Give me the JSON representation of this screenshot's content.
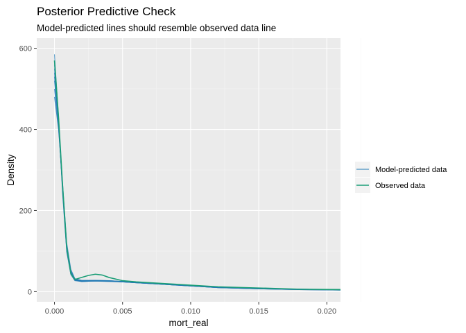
{
  "chart_data": {
    "type": "line",
    "title": "Posterior Predictive Check",
    "subtitle": "Model-predicted lines should resemble observed data line",
    "xlabel": "mort_real",
    "ylabel": "Density",
    "xlim": [
      -0.0013,
      0.021
    ],
    "ylim": [
      -25,
      625
    ],
    "x_ticks": [
      0.0,
      0.005,
      0.01,
      0.015,
      0.02
    ],
    "x_tick_labels": [
      "0.000",
      "0.005",
      "0.010",
      "0.015",
      "0.020"
    ],
    "y_ticks": [
      0,
      200,
      400,
      600
    ],
    "y_tick_labels": [
      "0",
      "200",
      "400",
      "600"
    ],
    "grid": true,
    "legend_position": "right",
    "legend": [
      {
        "label": "Model-predicted data",
        "color": "#1f78b4"
      },
      {
        "label": "Observed data",
        "color": "#1b9e77"
      }
    ],
    "series": [
      {
        "name": "Observed data",
        "color": "#1b9e77",
        "x": [
          0.0,
          0.0003,
          0.0006,
          0.0009,
          0.0012,
          0.0015,
          0.002,
          0.0025,
          0.003,
          0.0035,
          0.004,
          0.005,
          0.006,
          0.008,
          0.01,
          0.012,
          0.015,
          0.018,
          0.021
        ],
        "y": [
          570,
          430,
          260,
          110,
          45,
          30,
          35,
          40,
          43,
          41,
          35,
          27,
          24,
          20,
          16,
          12,
          9,
          6,
          5
        ]
      },
      {
        "name": "Model-predicted data",
        "color": "#1f78b4",
        "replicates": [
          {
            "x": [
              0.0,
              0.0003,
              0.0006,
              0.0009,
              0.0012,
              0.0015,
              0.002,
              0.003,
              0.004,
              0.005,
              0.006,
              0.008,
              0.01,
              0.012,
              0.015,
              0.018,
              0.021
            ],
            "y": [
              585,
              430,
              245,
              100,
              45,
              28,
              26,
              27,
              27,
              25,
              23,
              19,
              15,
              11,
              8,
              6,
              5
            ]
          },
          {
            "x": [
              0.0,
              0.0003,
              0.0006,
              0.0009,
              0.0012,
              0.0015,
              0.002,
              0.003,
              0.004,
              0.005,
              0.006,
              0.008,
              0.01,
              0.012,
              0.015,
              0.018,
              0.021
            ],
            "y": [
              560,
              420,
              240,
              98,
              42,
              27,
              25,
              26,
              26,
              24,
              22,
              18,
              14,
              10,
              7,
              5,
              4
            ]
          },
          {
            "x": [
              0.0,
              0.0003,
              0.0006,
              0.0009,
              0.0012,
              0.0015,
              0.002,
              0.003,
              0.004,
              0.005,
              0.006,
              0.008,
              0.01,
              0.012,
              0.015,
              0.018,
              0.021
            ],
            "y": [
              540,
              415,
              250,
              105,
              47,
              29,
              27,
              28,
              27,
              25,
              23,
              19,
              15,
              11,
              8,
              6,
              5
            ]
          },
          {
            "x": [
              0.0,
              0.0003,
              0.0006,
              0.0009,
              0.0012,
              0.0015,
              0.002,
              0.003,
              0.004,
              0.005,
              0.006,
              0.008,
              0.01,
              0.012,
              0.015,
              0.018,
              0.021
            ],
            "y": [
              520,
              410,
              255,
              110,
              50,
              30,
              26,
              27,
              26,
              24,
              22,
              18,
              14,
              10,
              7,
              5,
              4
            ]
          },
          {
            "x": [
              0.0,
              0.0003,
              0.0006,
              0.0009,
              0.0012,
              0.0015,
              0.002,
              0.003,
              0.004,
              0.005,
              0.006,
              0.008,
              0.01,
              0.012,
              0.015,
              0.018,
              0.021
            ],
            "y": [
              500,
              405,
              260,
              115,
              52,
              31,
              27,
              27,
              26,
              24,
              22,
              18,
              14,
              10,
              8,
              6,
              4
            ]
          },
          {
            "x": [
              0.0,
              0.0003,
              0.0006,
              0.0009,
              0.0012,
              0.0015,
              0.002,
              0.003,
              0.004,
              0.005,
              0.006,
              0.008,
              0.01,
              0.012,
              0.015,
              0.018,
              0.021
            ],
            "y": [
              480,
              400,
              265,
              120,
              55,
              32,
              28,
              28,
              27,
              25,
              23,
              19,
              15,
              11,
              8,
              6,
              5
            ]
          },
          {
            "x": [
              0.0,
              0.0003,
              0.0006,
              0.0009,
              0.0012,
              0.0015,
              0.002,
              0.003,
              0.004,
              0.005,
              0.006,
              0.008,
              0.01,
              0.012,
              0.015,
              0.018,
              0.021
            ],
            "y": [
              550,
              425,
              248,
              102,
              44,
              28,
              25,
              26,
              25,
              24,
              22,
              18,
              14,
              10,
              7,
              5,
              4
            ]
          },
          {
            "x": [
              0.0,
              0.0003,
              0.0006,
              0.0009,
              0.0012,
              0.0015,
              0.002,
              0.003,
              0.004,
              0.005,
              0.006,
              0.008,
              0.01,
              0.012,
              0.015,
              0.018,
              0.021
            ],
            "y": [
              530,
              418,
              252,
              108,
              48,
              29,
              26,
              27,
              26,
              25,
              23,
              19,
              15,
              11,
              8,
              6,
              5
            ]
          }
        ]
      }
    ]
  }
}
